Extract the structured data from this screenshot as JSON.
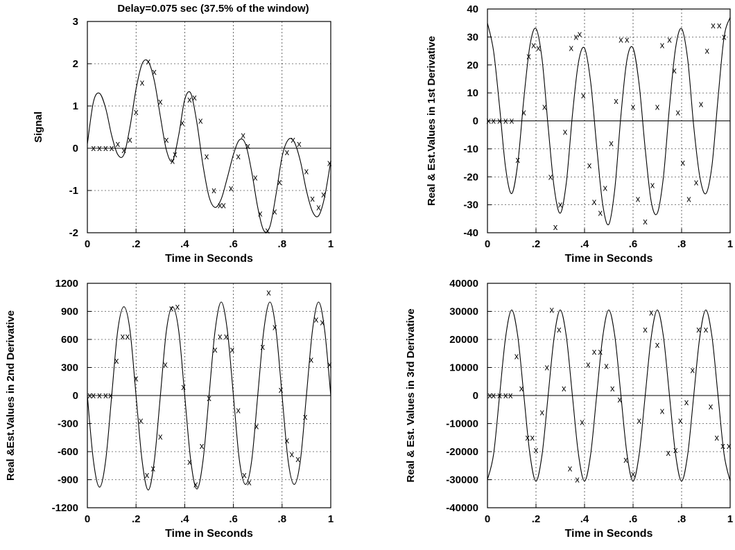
{
  "chart_data": [
    {
      "type": "line",
      "title": "Delay=0.075 sec (37.5% of the window)",
      "xlabel": "Time in Seconds",
      "ylabel": "Signal",
      "xlim": [
        0,
        1
      ],
      "ylim": [
        -2,
        3
      ],
      "xticks": [
        0,
        0.2,
        0.4,
        0.6,
        0.8,
        1
      ],
      "xtick_labels": [
        "0",
        ".2",
        ".4",
        ".6",
        ".8",
        "1"
      ],
      "yticks": [
        -2,
        -1,
        0,
        1,
        2,
        3
      ],
      "ytick_labels": [
        "-2",
        "-1",
        "0",
        "1",
        "2",
        "3"
      ],
      "grid": true,
      "series": [
        {
          "style": "line",
          "x": [
            0,
            0.025,
            0.05,
            0.075,
            0.1,
            0.125,
            0.15,
            0.175,
            0.2,
            0.225,
            0.25,
            0.275,
            0.3,
            0.325,
            0.35,
            0.375,
            0.4,
            0.425,
            0.45,
            0.475,
            0.5,
            0.525,
            0.55,
            0.575,
            0.6,
            0.625,
            0.65,
            0.675,
            0.7,
            0.725,
            0.75,
            0.775,
            0.8,
            0.825,
            0.85,
            0.875,
            0.9,
            0.925,
            0.95,
            0.975,
            1
          ],
          "y": [
            0.1,
            1.1,
            1.3,
            0.95,
            0.3,
            -0.15,
            -0.15,
            0.5,
            1.4,
            2.0,
            2.05,
            1.6,
            0.75,
            -0.05,
            -0.3,
            0.3,
            1.15,
            1.3,
            0.6,
            -0.4,
            -1.15,
            -1.4,
            -1.2,
            -0.7,
            -0.15,
            0.2,
            0.1,
            -0.55,
            -1.4,
            -1.95,
            -1.85,
            -1.1,
            -0.2,
            0.2,
            0.15,
            -0.3,
            -1.0,
            -1.5,
            -1.6,
            -1.15,
            -0.3
          ]
        },
        {
          "style": "markers",
          "marker": "x",
          "x": [
            0.025,
            0.05,
            0.075,
            0.1,
            0.125,
            0.15,
            0.175,
            0.2,
            0.225,
            0.25,
            0.275,
            0.3,
            0.325,
            0.35,
            0.36,
            0.39,
            0.42,
            0.44,
            0.465,
            0.49,
            0.52,
            0.545,
            0.56,
            0.59,
            0.62,
            0.64,
            0.66,
            0.69,
            0.71,
            0.74,
            0.77,
            0.79,
            0.82,
            0.845,
            0.87,
            0.9,
            0.925,
            0.95,
            0.97,
            0.995
          ],
          "y": [
            0,
            0,
            0,
            0,
            0.1,
            -0.05,
            0.2,
            0.85,
            1.55,
            2.05,
            1.8,
            1.1,
            0.2,
            -0.3,
            -0.15,
            0.6,
            1.15,
            1.2,
            0.65,
            -0.2,
            -1.0,
            -1.35,
            -1.35,
            -0.95,
            -0.2,
            0.3,
            0.05,
            -0.7,
            -1.55,
            -1.95,
            -1.5,
            -0.8,
            -0.1,
            0.2,
            0.1,
            -0.55,
            -1.2,
            -1.4,
            -1.1,
            -0.35
          ]
        }
      ]
    },
    {
      "type": "line",
      "xlabel": "Time in Seconds",
      "ylabel": "Real & Est.Values in 1st Derivative",
      "xlim": [
        0,
        1
      ],
      "ylim": [
        -40,
        40
      ],
      "xticks": [
        0,
        0.2,
        0.4,
        0.6,
        0.8,
        1
      ],
      "xtick_labels": [
        "0",
        ".2",
        ".4",
        ".6",
        ".8",
        "1"
      ],
      "yticks": [
        -40,
        -30,
        -20,
        -10,
        0,
        10,
        20,
        30,
        40
      ],
      "ytick_labels": [
        "-40",
        "-30",
        "-20",
        "-10",
        "0",
        "10",
        "20",
        "30",
        "40"
      ],
      "grid": true,
      "series": [
        {
          "style": "line",
          "x": [
            0,
            0.025,
            0.05,
            0.075,
            0.1,
            0.125,
            0.15,
            0.175,
            0.2,
            0.225,
            0.25,
            0.275,
            0.3,
            0.325,
            0.35,
            0.375,
            0.4,
            0.425,
            0.45,
            0.475,
            0.5,
            0.525,
            0.55,
            0.575,
            0.6,
            0.625,
            0.65,
            0.675,
            0.7,
            0.725,
            0.75,
            0.775,
            0.8,
            0.825,
            0.85,
            0.875,
            0.9,
            0.925,
            0.95,
            0.975,
            1
          ],
          "y": [
            35,
            25,
            5,
            -17,
            -26,
            -15,
            8,
            27,
            33,
            22,
            -2,
            -24,
            -33,
            -22,
            2,
            21,
            26,
            14,
            -9,
            -30,
            -37,
            -24,
            2,
            22,
            26,
            13,
            -10,
            -29,
            -33,
            -20,
            5,
            26,
            33,
            22,
            -2,
            -20,
            -26,
            -16,
            8,
            30,
            37
          ]
        },
        {
          "style": "markers",
          "marker": "x",
          "x": [
            0.005,
            0.025,
            0.05,
            0.075,
            0.1,
            0.125,
            0.15,
            0.17,
            0.19,
            0.21,
            0.235,
            0.26,
            0.28,
            0.3,
            0.32,
            0.345,
            0.365,
            0.38,
            0.395,
            0.42,
            0.44,
            0.465,
            0.485,
            0.51,
            0.53,
            0.55,
            0.575,
            0.6,
            0.62,
            0.65,
            0.68,
            0.7,
            0.72,
            0.75,
            0.77,
            0.785,
            0.805,
            0.83,
            0.86,
            0.88,
            0.905,
            0.93,
            0.955,
            0.975
          ],
          "y": [
            0,
            0,
            0,
            0,
            0,
            -14,
            3,
            23,
            27,
            26,
            5,
            -20,
            -38,
            -30,
            -4,
            26,
            30,
            31,
            9,
            -16,
            -29,
            -33,
            -24,
            -8,
            7,
            29,
            29,
            5,
            -28,
            -36,
            -23,
            5,
            27,
            29,
            18,
            3,
            -15,
            -28,
            -22,
            6,
            25,
            34,
            34,
            30
          ],
          "comment_removed": ""
        }
      ]
    },
    {
      "type": "line",
      "xlabel": "Time in Seconds",
      "ylabel": "Real &Est.Values in 2nd Derivative",
      "xlim": [
        0,
        1
      ],
      "ylim": [
        -1200,
        1200
      ],
      "xticks": [
        0,
        0.2,
        0.4,
        0.6,
        0.8,
        1
      ],
      "xtick_labels": [
        "0",
        ".2",
        ".4",
        ".6",
        ".8",
        "1"
      ],
      "yticks": [
        -1200,
        -900,
        -600,
        -300,
        0,
        300,
        600,
        900,
        1200
      ],
      "ytick_labels": [
        "-1200",
        "-900",
        "-600",
        "-300",
        "0",
        "300",
        "600",
        "900",
        "1200"
      ],
      "grid": true,
      "series": [
        {
          "style": "line",
          "x": [
            0,
            0.025,
            0.05,
            0.075,
            0.1,
            0.125,
            0.15,
            0.175,
            0.2,
            0.225,
            0.25,
            0.275,
            0.3,
            0.325,
            0.35,
            0.375,
            0.4,
            0.425,
            0.45,
            0.475,
            0.5,
            0.525,
            0.55,
            0.575,
            0.6,
            0.625,
            0.65,
            0.675,
            0.7,
            0.725,
            0.75,
            0.775,
            0.8,
            0.825,
            0.85,
            0.875,
            0.9,
            0.925,
            0.95,
            0.975,
            1
          ],
          "y": [
            0,
            -700,
            -980,
            -700,
            0,
            700,
            950,
            700,
            0,
            -700,
            -1010,
            -700,
            0,
            700,
            950,
            700,
            0,
            -700,
            -1000,
            -700,
            0,
            700,
            1000,
            700,
            0,
            -700,
            -950,
            -700,
            0,
            700,
            1000,
            700,
            0,
            -700,
            -950,
            -700,
            0,
            700,
            1000,
            700,
            0
          ]
        },
        {
          "style": "markers",
          "marker": "x",
          "x": [
            0.01,
            0.025,
            0.05,
            0.075,
            0.095,
            0.12,
            0.145,
            0.165,
            0.2,
            0.22,
            0.245,
            0.27,
            0.3,
            0.32,
            0.345,
            0.37,
            0.395,
            0.42,
            0.445,
            0.47,
            0.5,
            0.525,
            0.545,
            0.57,
            0.595,
            0.62,
            0.645,
            0.665,
            0.695,
            0.72,
            0.745,
            0.77,
            0.795,
            0.82,
            0.84,
            0.865,
            0.895,
            0.92,
            0.94,
            0.965,
            0.995
          ],
          "y": [
            0,
            0,
            0,
            0,
            0,
            370,
            630,
            630,
            180,
            -270,
            -850,
            -780,
            -440,
            330,
            930,
            950,
            90,
            -710,
            -950,
            -540,
            -30,
            490,
            630,
            630,
            490,
            -160,
            -850,
            -930,
            -330,
            520,
            1100,
            730,
            60,
            -480,
            -630,
            -680,
            -230,
            380,
            810,
            780,
            330
          ]
        }
      ]
    },
    {
      "type": "line",
      "xlabel": "Time in Seconds",
      "ylabel": "Real & Est. Values in 3rd Derivative",
      "xlim": [
        0,
        1
      ],
      "ylim": [
        -40000,
        40000
      ],
      "xticks": [
        0,
        0.2,
        0.4,
        0.6,
        0.8,
        1
      ],
      "xtick_labels": [
        "0",
        ".2",
        ".4",
        ".6",
        ".8",
        "1"
      ],
      "yticks": [
        -40000,
        -30000,
        -20000,
        -10000,
        0,
        10000,
        20000,
        30000,
        40000
      ],
      "ytick_labels": [
        "-40000",
        "-30000",
        "-20000",
        "-10000",
        "0",
        "10000",
        "20000",
        "30000",
        "40000"
      ],
      "grid": true,
      "series": [
        {
          "style": "line",
          "x": [
            0,
            0.025,
            0.05,
            0.075,
            0.1,
            0.125,
            0.15,
            0.175,
            0.2,
            0.225,
            0.25,
            0.275,
            0.3,
            0.325,
            0.35,
            0.375,
            0.4,
            0.425,
            0.45,
            0.475,
            0.5,
            0.525,
            0.55,
            0.575,
            0.6,
            0.625,
            0.65,
            0.675,
            0.7,
            0.725,
            0.75,
            0.775,
            0.8,
            0.825,
            0.85,
            0.875,
            0.9,
            0.925,
            0.95,
            0.975,
            1
          ],
          "y": [
            -30000,
            -21000,
            0,
            21000,
            30500,
            21000,
            0,
            -21000,
            -30500,
            -21000,
            0,
            21000,
            30500,
            21000,
            0,
            -21000,
            -30500,
            -21000,
            0,
            21000,
            30500,
            21000,
            0,
            -21000,
            -30500,
            -21000,
            0,
            21000,
            30500,
            21000,
            0,
            -21000,
            -30500,
            -21000,
            0,
            21000,
            30500,
            21000,
            0,
            -21000,
            -30500
          ]
        },
        {
          "style": "markers",
          "marker": "x",
          "x": [
            0.01,
            0.025,
            0.05,
            0.075,
            0.095,
            0.12,
            0.14,
            0.165,
            0.185,
            0.2,
            0.225,
            0.245,
            0.265,
            0.295,
            0.315,
            0.34,
            0.37,
            0.39,
            0.415,
            0.44,
            0.465,
            0.49,
            0.515,
            0.545,
            0.57,
            0.6,
            0.625,
            0.65,
            0.675,
            0.7,
            0.72,
            0.745,
            0.775,
            0.795,
            0.82,
            0.845,
            0.87,
            0.9,
            0.92,
            0.945,
            0.97,
            0.995
          ],
          "y": [
            0,
            0,
            0,
            0,
            0,
            14000,
            2500,
            -15000,
            -15000,
            -19500,
            -6000,
            10000,
            30500,
            23500,
            2500,
            -26000,
            -30000,
            -9500,
            11000,
            15500,
            15500,
            10500,
            2500,
            -1500,
            -23000,
            -28000,
            -9000,
            23500,
            29500,
            18000,
            -5500,
            -20500,
            -19500,
            -9000,
            -2500,
            9000,
            23500,
            23500,
            -4000,
            -15000,
            -18000,
            -18000
          ]
        }
      ]
    }
  ]
}
